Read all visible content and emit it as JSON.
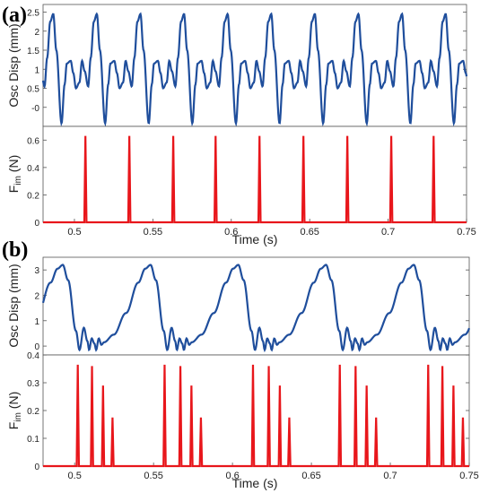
{
  "panels": [
    {
      "label": "(a)",
      "xlabel": "Time (s)",
      "top": {
        "ylabel": "Osc Disp (mm)",
        "yticks": [
          "-0",
          "0.5",
          "1",
          "1.5",
          "2",
          "2.5"
        ]
      },
      "bottom": {
        "ylabel_main": "F",
        "ylabel_sub": "im",
        "ylabel_unit": " (N)",
        "yticks": [
          "0",
          "0.2",
          "0.4",
          "0.6"
        ]
      },
      "xticks": [
        "0.5",
        "0.55",
        "0.6",
        "0.65",
        "0.7",
        "0.75"
      ]
    },
    {
      "label": "(b)",
      "xlabel": "Time (s)",
      "top": {
        "ylabel": "Osc Disp (mm)",
        "yticks": [
          "0",
          "1",
          "2",
          "3"
        ]
      },
      "bottom": {
        "ylabel_main": "F",
        "ylabel_sub": "im",
        "ylabel_unit": " (N)",
        "yticks": [
          "0",
          "0.1",
          "0.2",
          "0.3",
          "0.4"
        ]
      },
      "xticks": [
        "0.5",
        "0.55",
        "0.6",
        "0.65",
        "0.7",
        "0.75"
      ]
    }
  ],
  "chart_data": [
    {
      "type": "line",
      "panel": "(a) top",
      "ylabel": "Osc Disp (mm)",
      "xlim": [
        0.48,
        0.75
      ],
      "ylim": [
        -0.5,
        2.7
      ],
      "color": "#1f4e9c",
      "period": 0.0278,
      "first_peak_x": 0.4865,
      "cycle_shape": {
        "phase": [
          0,
          0.07,
          0.19,
          0.26,
          0.31,
          0.4,
          0.46,
          0.52,
          0.6,
          0.66,
          0.72,
          0.8,
          0.86,
          0.93,
          1.0
        ],
        "disp": [
          2.45,
          1.5,
          -0.42,
          0.6,
          1.15,
          1.22,
          0.9,
          0.5,
          0.65,
          1.22,
          0.95,
          0.55,
          1.3,
          2.25,
          2.45
        ]
      },
      "peak_max": 2.45,
      "trough_min": -0.42
    },
    {
      "type": "line",
      "panel": "(a) bottom",
      "ylabel": "Fim (N)",
      "xlim": [
        0.48,
        0.75
      ],
      "ylim": [
        0,
        0.7
      ],
      "color": "#e8161b",
      "impacts": [
        {
          "x": 0.507,
          "y": 0.63
        },
        {
          "x": 0.535,
          "y": 0.63
        },
        {
          "x": 0.563,
          "y": 0.63
        },
        {
          "x": 0.59,
          "y": 0.63
        },
        {
          "x": 0.618,
          "y": 0.63
        },
        {
          "x": 0.646,
          "y": 0.63
        },
        {
          "x": 0.674,
          "y": 0.63
        },
        {
          "x": 0.702,
          "y": 0.63
        },
        {
          "x": 0.729,
          "y": 0.63
        }
      ]
    },
    {
      "type": "line",
      "panel": "(b) top",
      "ylabel": "Osc Disp (mm)",
      "xlim": [
        0.48,
        0.75
      ],
      "ylim": [
        -0.35,
        3.5
      ],
      "color": "#1f4e9c",
      "period": 0.0556,
      "first_peak_x": 0.4925,
      "cycle_shape": {
        "phase": [
          0,
          0.06,
          0.15,
          0.19,
          0.24,
          0.28,
          0.3,
          0.33,
          0.36,
          0.38,
          0.41,
          0.44,
          0.47,
          0.58,
          0.72,
          0.86,
          0.94,
          1.0
        ],
        "disp": [
          3.2,
          2.6,
          0.6,
          -0.15,
          0.72,
          0.2,
          -0.15,
          0.3,
          0.1,
          -0.15,
          0.3,
          0.05,
          0.15,
          0.45,
          1.3,
          2.5,
          3.05,
          3.2
        ]
      },
      "peak_max": 3.2,
      "trough_min": -0.15
    },
    {
      "type": "line",
      "panel": "(b) bottom",
      "ylabel": "Fim (N)",
      "xlim": [
        0.48,
        0.75
      ],
      "ylim": [
        0,
        0.4
      ],
      "color": "#e8161b",
      "impacts": [
        {
          "x": 0.502,
          "y": 0.365
        },
        {
          "x": 0.511,
          "y": 0.36
        },
        {
          "x": 0.518,
          "y": 0.29
        },
        {
          "x": 0.524,
          "y": 0.175
        },
        {
          "x": 0.557,
          "y": 0.365
        },
        {
          "x": 0.567,
          "y": 0.36
        },
        {
          "x": 0.574,
          "y": 0.29
        },
        {
          "x": 0.58,
          "y": 0.175
        },
        {
          "x": 0.613,
          "y": 0.365
        },
        {
          "x": 0.623,
          "y": 0.36
        },
        {
          "x": 0.63,
          "y": 0.29
        },
        {
          "x": 0.636,
          "y": 0.175
        },
        {
          "x": 0.668,
          "y": 0.365
        },
        {
          "x": 0.678,
          "y": 0.36
        },
        {
          "x": 0.685,
          "y": 0.29
        },
        {
          "x": 0.691,
          "y": 0.175
        },
        {
          "x": 0.724,
          "y": 0.365
        },
        {
          "x": 0.733,
          "y": 0.36
        },
        {
          "x": 0.74,
          "y": 0.29
        },
        {
          "x": 0.746,
          "y": 0.175
        }
      ]
    }
  ]
}
